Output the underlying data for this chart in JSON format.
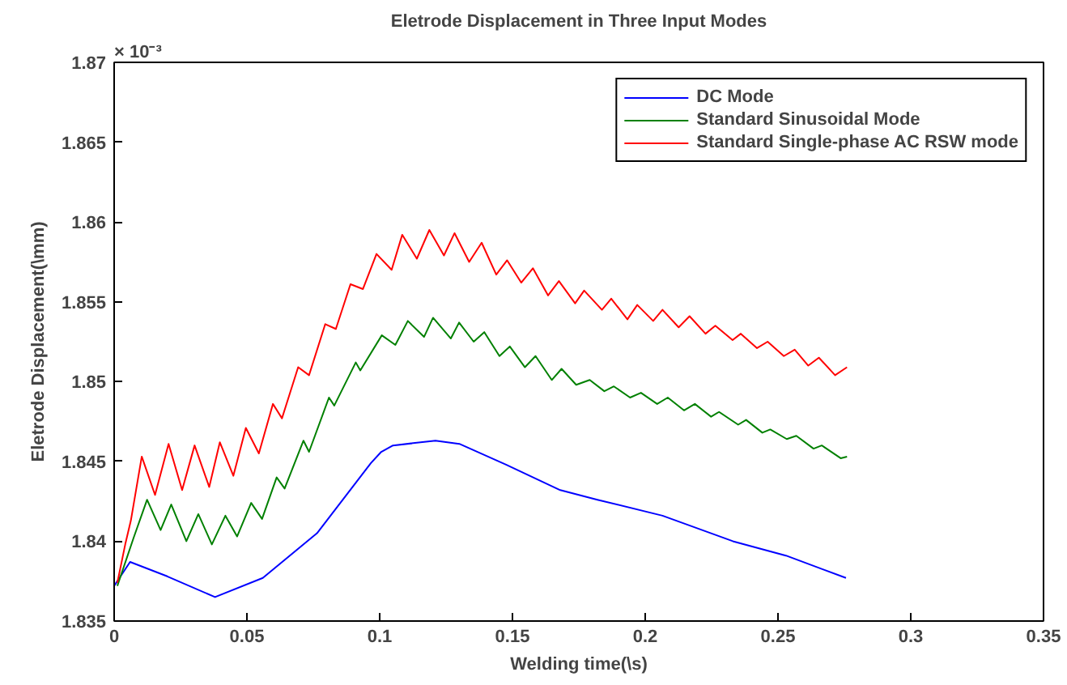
{
  "chart_data": {
    "type": "line",
    "title": "Eletrode Displacement in Three Input Modes",
    "xlabel": "Welding time(\\s)",
    "ylabel": "Eletrode Displacement(\\mm)",
    "annotations": [
      "× 10⁻³"
    ],
    "xlim": [
      0,
      0.35
    ],
    "ylim": [
      1.835,
      1.87
    ],
    "xticks": [
      0,
      0.05,
      0.1,
      0.15,
      0.2,
      0.25,
      0.3,
      0.35
    ],
    "yticks": [
      1.835,
      1.84,
      1.845,
      1.85,
      1.855,
      1.86,
      1.865,
      1.87
    ],
    "grid": false,
    "legend": "top right",
    "marker": "none",
    "line_style": "solid",
    "series": [
      {
        "name": "DC Mode",
        "color": "#0000ff",
        "x": [
          0,
          0.006,
          0.02,
          0.038,
          0.056,
          0.0764,
          0.0967,
          0.1006,
          0.105,
          0.121,
          0.13,
          0.1476,
          0.168,
          0.182,
          0.2065,
          0.233,
          0.253,
          0.2756
        ],
        "values": [
          1.8372,
          1.8387,
          1.8378,
          1.8365,
          1.8377,
          1.8405,
          1.8449,
          1.8456,
          1.846,
          1.8463,
          1.8461,
          1.8448,
          1.8432,
          1.8426,
          1.8416,
          1.84,
          1.8391,
          1.8377
        ]
      },
      {
        "name": "Standard Sinusoidal Mode",
        "color": "#008000",
        "x": [
          0.0012,
          0.0073,
          0.0124,
          0.0175,
          0.0215,
          0.0272,
          0.0317,
          0.0368,
          0.0419,
          0.0463,
          0.0516,
          0.0557,
          0.0612,
          0.0642,
          0.0713,
          0.0734,
          0.0809,
          0.0829,
          0.091,
          0.0927,
          0.1008,
          0.1059,
          0.1106,
          0.1167,
          0.1201,
          0.1268,
          0.1299,
          0.1354,
          0.1394,
          0.1451,
          0.149,
          0.1547,
          0.1587,
          0.1648,
          0.1685,
          0.174,
          0.1791,
          0.1846,
          0.1882,
          0.1943,
          0.1984,
          0.2045,
          0.2085,
          0.2146,
          0.2187,
          0.2248,
          0.2278,
          0.235,
          0.238,
          0.2441,
          0.2471,
          0.2533,
          0.2569,
          0.2634,
          0.2665,
          0.2736,
          0.276
        ],
        "values": [
          1.8372,
          1.8402,
          1.8426,
          1.8407,
          1.8423,
          1.84,
          1.8417,
          1.8398,
          1.8416,
          1.8403,
          1.8424,
          1.8414,
          1.844,
          1.8433,
          1.8463,
          1.8456,
          1.849,
          1.8485,
          1.8512,
          1.8507,
          1.8529,
          1.8523,
          1.8538,
          1.8528,
          1.854,
          1.8527,
          1.8537,
          1.8525,
          1.8531,
          1.8516,
          1.8522,
          1.8509,
          1.8516,
          1.8501,
          1.8508,
          1.8498,
          1.8501,
          1.8494,
          1.8497,
          1.849,
          1.8493,
          1.8486,
          1.849,
          1.8482,
          1.8486,
          1.8478,
          1.8481,
          1.8473,
          1.8476,
          1.8468,
          1.847,
          1.8464,
          1.8466,
          1.8458,
          1.846,
          1.8452,
          1.8453
        ]
      },
      {
        "name": "Standard Single-phase AC RSW mode",
        "color": "#ff0000",
        "x": [
          0.0012,
          0.0043,
          0.0063,
          0.0104,
          0.0154,
          0.0205,
          0.0256,
          0.0303,
          0.0358,
          0.0398,
          0.0449,
          0.0496,
          0.0545,
          0.0598,
          0.0632,
          0.0693,
          0.0734,
          0.0795,
          0.0835,
          0.089,
          0.0937,
          0.0988,
          0.1045,
          0.1085,
          0.114,
          0.1187,
          0.1242,
          0.1282,
          0.1337,
          0.1384,
          0.1439,
          0.148,
          0.1533,
          0.1577,
          0.1634,
          0.1675,
          0.1736,
          0.177,
          0.1837,
          0.1872,
          0.1933,
          0.197,
          0.203,
          0.2065,
          0.2126,
          0.2167,
          0.2227,
          0.2264,
          0.2329,
          0.236,
          0.2421,
          0.2461,
          0.2522,
          0.2563,
          0.2614,
          0.2654,
          0.2715,
          0.276
        ],
        "values": [
          1.8374,
          1.8399,
          1.8413,
          1.8453,
          1.8429,
          1.8461,
          1.8432,
          1.846,
          1.8434,
          1.8462,
          1.8441,
          1.8471,
          1.8455,
          1.8486,
          1.8477,
          1.8509,
          1.8504,
          1.8536,
          1.8533,
          1.8561,
          1.8558,
          1.858,
          1.857,
          1.8592,
          1.8577,
          1.8595,
          1.8579,
          1.8593,
          1.8575,
          1.8587,
          1.8567,
          1.8576,
          1.8562,
          1.8571,
          1.8554,
          1.8563,
          1.8549,
          1.8557,
          1.8545,
          1.8552,
          1.8539,
          1.8548,
          1.8538,
          1.8545,
          1.8534,
          1.8541,
          1.853,
          1.8535,
          1.8526,
          1.853,
          1.8521,
          1.8525,
          1.8516,
          1.852,
          1.851,
          1.8515,
          1.8504,
          1.8509
        ]
      }
    ]
  }
}
